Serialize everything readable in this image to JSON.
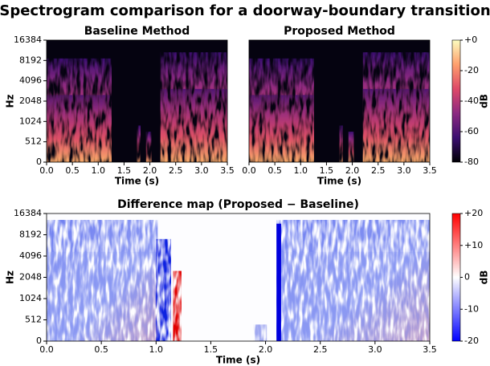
{
  "title": "Spectrogram comparison for a doorway-boundary transition",
  "chart_data": [
    {
      "type": "spectrogram",
      "title": "Baseline Method",
      "xlabel": "Time (s)",
      "ylabel": "Hz",
      "xlim": [
        0,
        3.5
      ],
      "xticks": [
        {
          "value": 0,
          "label": "0.0"
        },
        0.5,
        {
          "value": 1,
          "label": "1.0"
        },
        1.5,
        {
          "value": 2,
          "label": "2.0"
        },
        2.5,
        {
          "value": 3,
          "label": "3.0"
        },
        3.5
      ],
      "ylim": [
        0,
        16384
      ],
      "yscale": "symlog",
      "linthresh": 512,
      "yticks": [
        0,
        512,
        1024,
        2048,
        4096,
        8192,
        16384
      ]
    },
    {
      "type": "spectrogram",
      "title": "Proposed Method",
      "xlabel": "Time (s)",
      "xlim": [
        0,
        3.5
      ],
      "xticks": [
        {
          "value": 0,
          "label": "0.0"
        },
        0.5,
        {
          "value": 1,
          "label": "1.0"
        },
        1.5,
        {
          "value": 2,
          "label": "2.0"
        },
        2.5,
        {
          "value": 3,
          "label": "3.0"
        },
        3.5
      ],
      "ylim": [
        0,
        16384
      ],
      "yscale": "symlog",
      "linthresh": 512,
      "colorbar": {
        "label": "dB",
        "colormap": "magma",
        "lim": [
          -80,
          0
        ],
        "ticks": [
          {
            "value": 0,
            "label": "+0"
          },
          -20,
          -40,
          -60,
          -80
        ]
      }
    },
    {
      "type": "difference",
      "title": "Difference map  (Proposed − Baseline)",
      "xlabel": "Time (s)",
      "ylabel": "Hz",
      "xlim": [
        0,
        3.5
      ],
      "xticks": [
        {
          "value": 0,
          "label": "0.0"
        },
        0.5,
        {
          "value": 1,
          "label": "1.0"
        },
        1.5,
        {
          "value": 2,
          "label": "2.0"
        },
        2.5,
        {
          "value": 3,
          "label": "3.0"
        },
        3.5
      ],
      "ylim": [
        0,
        16384
      ],
      "yscale": "symlog",
      "linthresh": 512,
      "yticks": [
        0,
        512,
        1024,
        2048,
        4096,
        8192,
        16384
      ],
      "colorbar": {
        "label": "dB",
        "colormap": "bwr",
        "lim": [
          -20,
          20
        ],
        "ticks": [
          {
            "value": 20,
            "label": "+20"
          },
          {
            "value": 10,
            "label": "+10"
          },
          0,
          -10,
          -20
        ]
      }
    }
  ]
}
